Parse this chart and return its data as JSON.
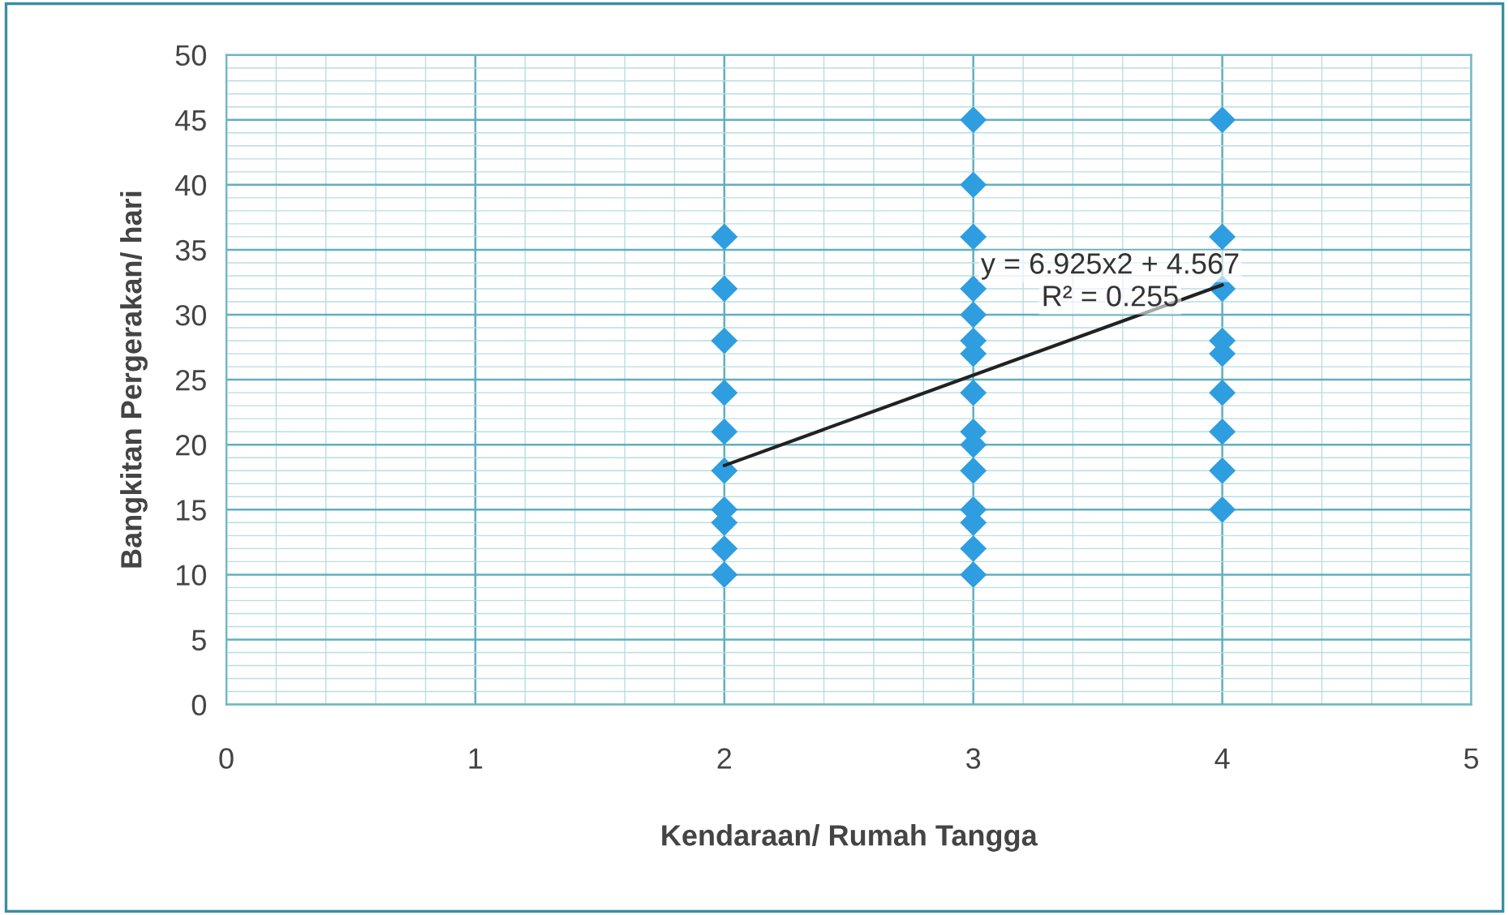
{
  "chart_data": {
    "type": "scatter",
    "xlabel": "Kendaraan/ Rumah Tangga",
    "ylabel": "Bangkitan Pergerakan/ hari",
    "series": [
      {
        "color": "#2e9ee0",
        "marker": "diamond",
        "x": [
          2,
          2,
          2,
          2,
          2,
          2,
          2,
          2,
          2,
          2,
          3,
          3,
          3,
          3,
          3,
          3,
          3,
          3,
          3,
          3,
          3,
          3,
          3,
          3,
          3,
          4,
          4,
          4,
          4,
          4,
          4,
          4,
          4,
          4
        ],
        "values": [
          36,
          32,
          28,
          24,
          21,
          18,
          15,
          14,
          12,
          10,
          45,
          40,
          36,
          32,
          30,
          28,
          27,
          24,
          21,
          20,
          18,
          15,
          14,
          12,
          10,
          45,
          36,
          32,
          28,
          27,
          24,
          21,
          18,
          15
        ]
      },
      {
        "type": "line",
        "color": "#222222",
        "marker": "none",
        "line_style": "solid",
        "x": [
          2,
          4
        ],
        "values": [
          18.4,
          32.3
        ]
      }
    ],
    "annotations": [
      "y = 6.925x2 + 4.567",
      "R² = 0.255"
    ],
    "xlim": [
      0,
      5
    ],
    "xticks": [
      0,
      {
        "value": 0.2,
        "label": null
      },
      {
        "value": 0.4,
        "label": null
      },
      {
        "value": 0.6,
        "label": null
      },
      {
        "value": 0.8,
        "label": null
      },
      1,
      {
        "value": 1.2,
        "label": null
      },
      {
        "value": 1.4,
        "label": null
      },
      {
        "value": 1.6,
        "label": null
      },
      {
        "value": 1.8,
        "label": null
      },
      2,
      {
        "value": 2.2,
        "label": null
      },
      {
        "value": 2.4,
        "label": null
      },
      {
        "value": 2.6,
        "label": null
      },
      {
        "value": 2.8,
        "label": null
      },
      3,
      {
        "value": 3.2,
        "label": null
      },
      {
        "value": 3.4,
        "label": null
      },
      {
        "value": 3.6,
        "label": null
      },
      {
        "value": 3.8,
        "label": null
      },
      4,
      {
        "value": 4.2,
        "label": null
      },
      {
        "value": 4.4,
        "label": null
      },
      {
        "value": 4.6,
        "label": null
      },
      {
        "value": 4.8,
        "label": null
      },
      5
    ],
    "ylim": [
      0,
      50
    ],
    "yticks": [
      0,
      {
        "value": 1,
        "label": null
      },
      {
        "value": 2,
        "label": null
      },
      {
        "value": 3,
        "label": null
      },
      {
        "value": 4,
        "label": null
      },
      5,
      {
        "value": 6,
        "label": null
      },
      {
        "value": 7,
        "label": null
      },
      {
        "value": 8,
        "label": null
      },
      {
        "value": 9,
        "label": null
      },
      10,
      {
        "value": 11,
        "label": null
      },
      {
        "value": 12,
        "label": null
      },
      {
        "value": 13,
        "label": null
      },
      {
        "value": 14,
        "label": null
      },
      15,
      {
        "value": 16,
        "label": null
      },
      {
        "value": 17,
        "label": null
      },
      {
        "value": 18,
        "label": null
      },
      {
        "value": 19,
        "label": null
      },
      20,
      {
        "value": 21,
        "label": null
      },
      {
        "value": 22,
        "label": null
      },
      {
        "value": 23,
        "label": null
      },
      {
        "value": 24,
        "label": null
      },
      25,
      {
        "value": 26,
        "label": null
      },
      {
        "value": 27,
        "label": null
      },
      {
        "value": 28,
        "label": null
      },
      {
        "value": 29,
        "label": null
      },
      30,
      {
        "value": 31,
        "label": null
      },
      {
        "value": 32,
        "label": null
      },
      {
        "value": 33,
        "label": null
      },
      {
        "value": 34,
        "label": null
      },
      35,
      {
        "value": 36,
        "label": null
      },
      {
        "value": 37,
        "label": null
      },
      {
        "value": 38,
        "label": null
      },
      {
        "value": 39,
        "label": null
      },
      40,
      {
        "value": 41,
        "label": null
      },
      {
        "value": 42,
        "label": null
      },
      {
        "value": 43,
        "label": null
      },
      {
        "value": 44,
        "label": null
      },
      45,
      {
        "value": 46,
        "label": null
      },
      {
        "value": 47,
        "label": null
      },
      {
        "value": 48,
        "label": null
      },
      {
        "value": 49,
        "label": null
      },
      50
    ],
    "grid": true
  }
}
